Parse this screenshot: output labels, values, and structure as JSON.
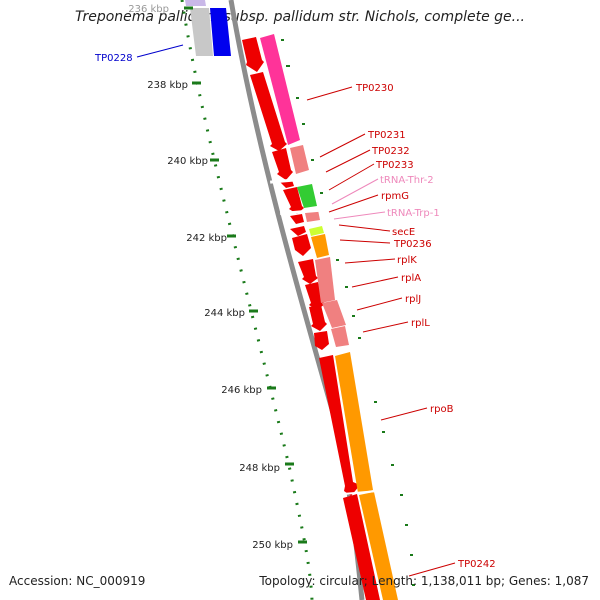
{
  "title": "Treponema pallidum subsp. pallidum str. Nichols, complete ge...",
  "footer": {
    "accession": "Accession: NC_000919",
    "topology": "Topology: circular; Length: 1,138,011 bp; Genes: 1,087"
  },
  "colors": {
    "backbone": "#8c8c8c",
    "cds": "#ee0000",
    "rRNA_pink": "#ff3399",
    "light_red": "#f08080",
    "green": "#33cc33",
    "orange": "#ff9900",
    "blue": "#0000ee",
    "lavender": "#c9b8e8",
    "tick": "#1a7a1a",
    "label_red": "#cc0000",
    "label_pink": "#ee88bb",
    "label_blue": "#0000cc"
  },
  "kbp_labels": [
    "236 kbp",
    "238 kbp",
    "240 kbp",
    "242 kbp",
    "244 kbp",
    "246 kbp",
    "248 kbp",
    "250 kbp"
  ],
  "features": [
    {
      "name": "TP0228",
      "type": "gene",
      "color_key": "label_blue"
    },
    {
      "name": "TP0230",
      "type": "gene",
      "color_key": "label_red"
    },
    {
      "name": "TP0231",
      "type": "gene",
      "color_key": "label_red"
    },
    {
      "name": "TP0232",
      "type": "gene",
      "color_key": "label_red"
    },
    {
      "name": "TP0233",
      "type": "gene",
      "color_key": "label_red"
    },
    {
      "name": "tRNA-Thr-2",
      "type": "tRNA",
      "color_key": "label_pink"
    },
    {
      "name": "rpmG",
      "type": "gene",
      "color_key": "label_red"
    },
    {
      "name": "tRNA-Trp-1",
      "type": "tRNA",
      "color_key": "label_pink"
    },
    {
      "name": "secE",
      "type": "gene",
      "color_key": "label_red"
    },
    {
      "name": "TP0236",
      "type": "gene",
      "color_key": "label_red"
    },
    {
      "name": "rplK",
      "type": "gene",
      "color_key": "label_red"
    },
    {
      "name": "rplA",
      "type": "gene",
      "color_key": "label_red"
    },
    {
      "name": "rplJ",
      "type": "gene",
      "color_key": "label_red"
    },
    {
      "name": "rplL",
      "type": "gene",
      "color_key": "label_red"
    },
    {
      "name": "rpoB",
      "type": "gene",
      "color_key": "label_red"
    },
    {
      "name": "TP0242",
      "type": "gene",
      "color_key": "label_red"
    }
  ]
}
